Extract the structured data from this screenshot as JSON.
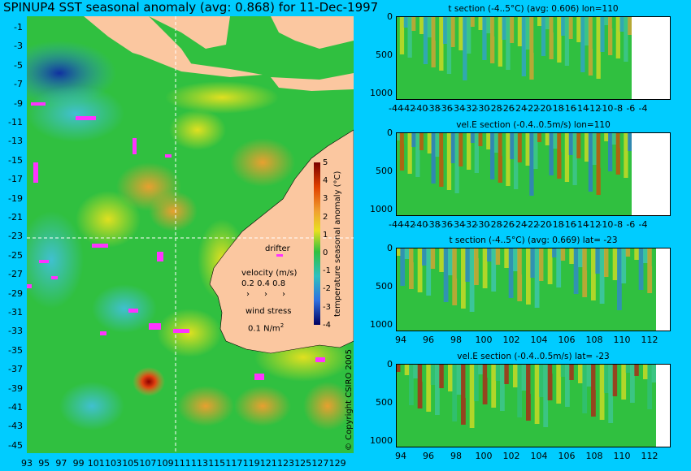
{
  "title": "SPINUP4 SST seasonal anomaly (avg: 0.868) for 11-Dec-1997",
  "map": {
    "lat_ticks": [
      "-1",
      "-3",
      "-5",
      "-7",
      "-9",
      "-11",
      "-13",
      "-15",
      "-17",
      "-19",
      "-21",
      "-23",
      "-25",
      "-27",
      "-29",
      "-31",
      "-33",
      "-35",
      "-37",
      "-39",
      "-41",
      "-43",
      "-45"
    ],
    "lon_ticks": [
      "93",
      "95",
      "97",
      "99",
      "101",
      "103",
      "105",
      "107",
      "109",
      "111",
      "113",
      "115",
      "117",
      "119",
      "121",
      "123",
      "125",
      "127",
      "129"
    ],
    "colorbar": {
      "label": "temperature seasonal anomaly (°C)",
      "ticks": [
        "5",
        "4",
        "3",
        "2",
        "1",
        "0",
        "-1",
        "-2",
        "-3",
        "-4"
      ],
      "range": [
        -4,
        5
      ]
    },
    "legend": {
      "drifter": "drifter",
      "velocity_title": "velocity (m/s)",
      "velocity_values": "0.2 0.4 0.8",
      "wind_title": "wind stress",
      "wind_value": "0.1 N/m",
      "wind_sup": "2"
    },
    "colors": {
      "land": "#fbc7a0",
      "background": "#00ccff",
      "drifter": "#ff33ff"
    }
  },
  "panels": [
    {
      "title": "t section (-4..5°C) (avg: 0.606) lon=110",
      "y_ticks": [
        "0",
        "500",
        "1000"
      ],
      "x_ticks": [
        "-44",
        "-42",
        "-40",
        "-38",
        "-36",
        "-34",
        "-32",
        "-30",
        "-28",
        "-26",
        "-24",
        "-22",
        "-20",
        "-18",
        "-16",
        "-14",
        "-12",
        "-10",
        "-8",
        "-6",
        "-4"
      ]
    },
    {
      "title": "vel.E section (-0.4..0.5m/s) lon=110",
      "y_ticks": [
        "0",
        "500",
        "1000"
      ],
      "x_ticks": [
        "-44",
        "-42",
        "-40",
        "-38",
        "-36",
        "-34",
        "-32",
        "-30",
        "-28",
        "-26",
        "-24",
        "-22",
        "-20",
        "-18",
        "-16",
        "-14",
        "-12",
        "-10",
        "-8",
        "-6",
        "-4"
      ]
    },
    {
      "title": "t section (-4..5°C) (avg: 0.669) lat= -23",
      "y_ticks": [
        "0",
        "500",
        "1000"
      ],
      "x_ticks": [
        "94",
        "96",
        "98",
        "100",
        "102",
        "104",
        "106",
        "108",
        "110",
        "112"
      ]
    },
    {
      "title": "vel.E section (-0.4..0.5m/s) lat= -23",
      "y_ticks": [
        "0",
        "500",
        "1000"
      ],
      "x_ticks": [
        "94",
        "96",
        "98",
        "100",
        "102",
        "104",
        "106",
        "108",
        "110",
        "112"
      ]
    }
  ],
  "copyright": "© Copyright CSIRO 2005"
}
